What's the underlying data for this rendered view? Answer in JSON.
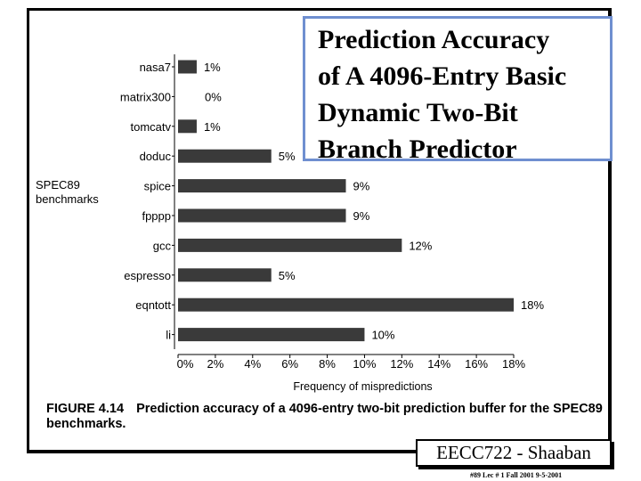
{
  "slide": {
    "title_lines": [
      "Prediction Accuracy",
      "of A 4096-Entry Basic",
      "Dynamic Two-Bit",
      "Branch Predictor"
    ],
    "course": "EECC722 - Shaaban",
    "footer": "#89   Lec # 1   Fall 2001  9-5-2001"
  },
  "caption": {
    "figure": "FIGURE 4.14",
    "text": "Prediction accuracy of a 4096-entry two-bit prediction buffer for the SPEC89 benchmarks."
  },
  "chart_data": {
    "type": "bar",
    "orientation": "horizontal",
    "categories": [
      "nasa7",
      "matrix300",
      "tomcatv",
      "doduc",
      "spice",
      "fpppp",
      "gcc",
      "espresso",
      "eqntott",
      "li"
    ],
    "values": [
      1,
      0,
      1,
      5,
      9,
      9,
      12,
      5,
      18,
      10
    ],
    "value_labels": [
      "1%",
      "0%",
      "1%",
      "5%",
      "9%",
      "9%",
      "12%",
      "5%",
      "18%",
      "10%"
    ],
    "category_axis_label_lines": [
      "SPEC89",
      "benchmarks"
    ],
    "xlabel": "Frequency of mispredictions",
    "xticks": [
      "0%",
      "2%",
      "4%",
      "6%",
      "8%",
      "10%",
      "12%",
      "14%",
      "16%",
      "18%"
    ],
    "xlim": [
      0,
      18
    ],
    "bar_color": "#3a3a3a",
    "grid": false
  }
}
